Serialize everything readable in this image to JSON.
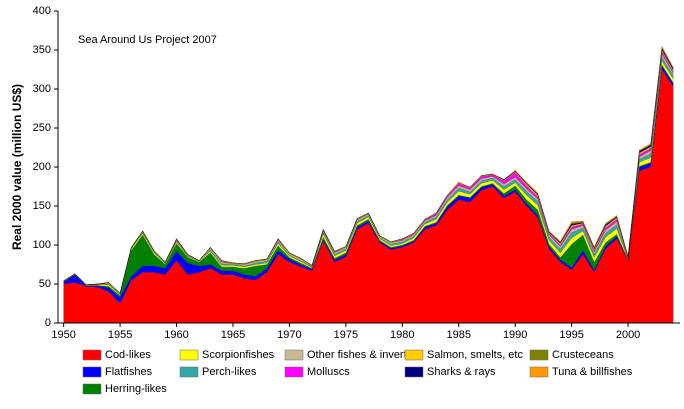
{
  "chart_data": {
    "type": "stacked_area",
    "ylabel": "Real 2000 value (million US$)",
    "annotation": "Sea Around Us Project 2007",
    "x": [
      1950,
      1951,
      1952,
      1953,
      1954,
      1955,
      1956,
      1957,
      1958,
      1959,
      1960,
      1961,
      1962,
      1963,
      1964,
      1965,
      1966,
      1967,
      1968,
      1969,
      1970,
      1971,
      1972,
      1973,
      1974,
      1975,
      1976,
      1977,
      1978,
      1979,
      1980,
      1981,
      1982,
      1983,
      1984,
      1985,
      1986,
      1987,
      1988,
      1989,
      1990,
      1991,
      1992,
      1993,
      1994,
      1995,
      1996,
      1997,
      1998,
      1999,
      2000,
      2001,
      2002,
      2003,
      2004
    ],
    "xlim": [
      1949.5,
      2004.6
    ],
    "xticks": [
      1950,
      1955,
      1960,
      1965,
      1970,
      1975,
      1980,
      1985,
      1990,
      1995,
      2000
    ],
    "ylim": [
      0,
      400
    ],
    "yticks": [
      0,
      50,
      100,
      150,
      200,
      250,
      300,
      350,
      400
    ],
    "series": [
      {
        "name": "Cod-likes",
        "color": "#ff0000",
        "values": [
          50,
          52,
          47,
          46,
          40,
          25,
          55,
          65,
          65,
          62,
          80,
          62,
          65,
          70,
          62,
          62,
          57,
          55,
          65,
          88,
          78,
          72,
          67,
          105,
          78,
          85,
          120,
          128,
          103,
          94,
          97,
          103,
          120,
          125,
          145,
          158,
          155,
          170,
          175,
          160,
          168,
          150,
          135,
          95,
          78,
          68,
          88,
          65,
          95,
          108,
          80,
          195,
          200,
          325,
          303
        ]
      },
      {
        "name": "Flatfishes",
        "color": "#0000ff",
        "values": [
          3,
          10,
          1,
          2,
          5,
          8,
          5,
          8,
          8,
          8,
          12,
          15,
          8,
          5,
          5,
          5,
          5,
          5,
          5,
          5,
          4,
          3,
          2,
          2,
          3,
          3,
          3,
          3,
          2,
          2,
          2,
          2,
          3,
          3,
          5,
          5,
          5,
          4,
          3,
          3,
          3,
          3,
          3,
          3,
          3,
          3,
          5,
          3,
          3,
          3,
          1,
          5,
          5,
          5,
          4
        ]
      },
      {
        "name": "Herring-likes",
        "color": "#008000",
        "values": [
          0,
          0,
          0,
          0,
          2,
          2,
          33,
          40,
          15,
          5,
          10,
          7,
          5,
          15,
          5,
          5,
          8,
          13,
          5,
          6,
          2,
          2,
          1,
          3,
          2,
          2,
          2,
          2,
          1,
          1,
          1,
          1,
          1,
          1,
          1,
          1,
          1,
          1,
          1,
          3,
          5,
          5,
          7,
          3,
          3,
          30,
          20,
          10,
          5,
          3,
          0,
          1,
          1,
          1,
          1
        ]
      },
      {
        "name": "Scorpionfishes",
        "color": "#ffff00",
        "values": [
          1,
          1,
          1,
          1,
          2,
          1,
          2,
          2,
          2,
          1,
          2,
          1,
          1,
          2,
          2,
          2,
          2,
          2,
          2,
          3,
          2,
          2,
          1,
          4,
          3,
          3,
          3,
          3,
          2,
          2,
          2,
          3,
          3,
          4,
          4,
          5,
          4,
          4,
          4,
          5,
          4,
          6,
          6,
          5,
          6,
          8,
          5,
          6,
          7,
          7,
          1,
          5,
          6,
          5,
          5
        ]
      },
      {
        "name": "Perch-likes",
        "color": "#33a6a6",
        "values": [
          0,
          0,
          0,
          0,
          1,
          1,
          1,
          1,
          1,
          1,
          1,
          1,
          0,
          2,
          2,
          1,
          1,
          2,
          2,
          2,
          1,
          1,
          1,
          2,
          2,
          2,
          2,
          2,
          1,
          2,
          2,
          2,
          2,
          3,
          3,
          4,
          3,
          3,
          3,
          4,
          4,
          5,
          5,
          4,
          5,
          7,
          4,
          4,
          5,
          5,
          1,
          4,
          5,
          5,
          4
        ]
      },
      {
        "name": "Other fishes & inverts",
        "color": "#c8b896",
        "values": [
          0,
          0,
          0,
          1,
          1,
          1,
          1,
          1,
          1,
          1,
          1,
          1,
          1,
          2,
          2,
          1,
          2,
          2,
          2,
          2,
          2,
          2,
          1,
          2,
          2,
          2,
          2,
          2,
          2,
          2,
          2,
          2,
          2,
          2,
          3,
          3,
          3,
          3,
          2,
          3,
          3,
          3,
          3,
          3,
          3,
          4,
          3,
          3,
          4,
          4,
          1,
          3,
          4,
          4,
          3
        ]
      },
      {
        "name": "Molluscs",
        "color": "#ff00ff",
        "values": [
          0,
          0,
          0,
          0,
          0,
          0,
          0,
          0,
          0,
          0,
          1,
          0,
          0,
          0,
          1,
          0,
          0,
          0,
          0,
          1,
          0,
          0,
          0,
          1,
          1,
          0,
          1,
          0,
          0,
          0,
          1,
          1,
          1,
          2,
          2,
          3,
          2,
          3,
          2,
          4,
          6,
          4,
          3,
          2,
          2,
          3,
          2,
          2,
          3,
          3,
          0,
          3,
          3,
          3,
          2
        ]
      },
      {
        "name": "Salmon, smelts, etc",
        "color": "#ffcc00",
        "values": [
          0,
          0,
          0,
          0,
          1,
          0,
          0,
          1,
          1,
          0,
          1,
          1,
          0,
          1,
          1,
          1,
          1,
          1,
          1,
          1,
          1,
          1,
          1,
          1,
          1,
          1,
          1,
          1,
          1,
          1,
          1,
          1,
          1,
          1,
          1,
          1,
          1,
          1,
          1,
          1,
          1,
          2,
          2,
          1,
          2,
          2,
          1,
          2,
          2,
          2,
          1,
          2,
          2,
          2,
          2
        ]
      },
      {
        "name": "Sharks & rays",
        "color": "#000080",
        "values": [
          0,
          0,
          0,
          0,
          0,
          0,
          0,
          0,
          0,
          0,
          0,
          0,
          0,
          0,
          0,
          0,
          0,
          0,
          0,
          0,
          0,
          0,
          0,
          0,
          0,
          0,
          0,
          0,
          0,
          0,
          0,
          0,
          0,
          0,
          0,
          0,
          0,
          0,
          0,
          1,
          1,
          1,
          1,
          1,
          1,
          2,
          1,
          1,
          2,
          1,
          0,
          2,
          2,
          2,
          2
        ]
      },
      {
        "name": "Crusteceans",
        "color": "#808000",
        "values": [
          0,
          0,
          0,
          0,
          0,
          0,
          0,
          0,
          0,
          0,
          0,
          0,
          0,
          0,
          0,
          0,
          0,
          0,
          0,
          0,
          0,
          0,
          0,
          0,
          0,
          0,
          0,
          0,
          0,
          0,
          0,
          0,
          0,
          0,
          0,
          0,
          0,
          0,
          0,
          0,
          0,
          1,
          1,
          0,
          1,
          1,
          1,
          1,
          1,
          1,
          0,
          1,
          1,
          1,
          1
        ]
      },
      {
        "name": "Tuna & billfishes",
        "color": "#ff9900",
        "values": [
          0,
          0,
          0,
          0,
          0,
          0,
          0,
          0,
          0,
          0,
          0,
          0,
          0,
          0,
          0,
          0,
          0,
          0,
          0,
          0,
          0,
          0,
          0,
          0,
          0,
          0,
          0,
          0,
          0,
          0,
          0,
          0,
          0,
          0,
          0,
          1,
          0,
          0,
          0,
          0,
          1,
          1,
          1,
          1,
          1,
          2,
          1,
          1,
          1,
          1,
          0,
          1,
          1,
          2,
          1
        ]
      }
    ]
  }
}
